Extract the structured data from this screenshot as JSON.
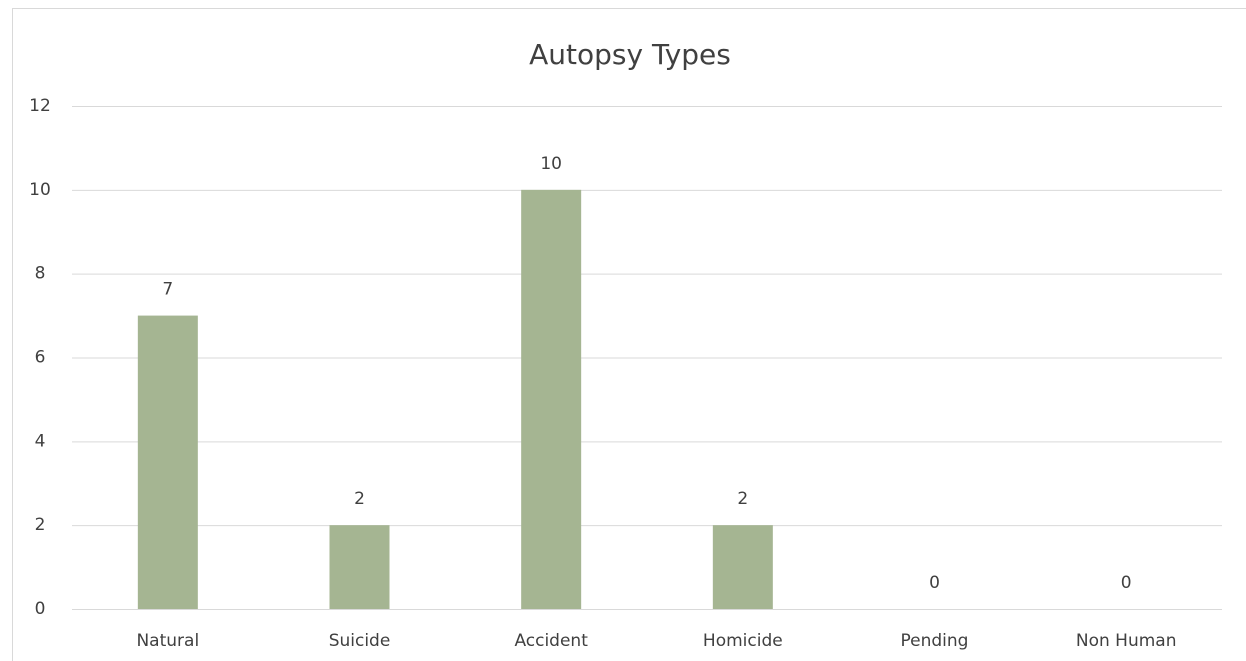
{
  "chart_data": {
    "type": "bar",
    "title": "Autopsy Types",
    "categories": [
      "Natural",
      "Suicide",
      "Accident",
      "Homicide",
      "Pending",
      "Non Human"
    ],
    "values": [
      7,
      2,
      10,
      2,
      0,
      0
    ],
    "color": "#a5b592",
    "ylim": [
      0,
      12
    ],
    "yticks": [
      0,
      2,
      4,
      6,
      8,
      10,
      12
    ],
    "grid": true,
    "data_labels": true
  }
}
